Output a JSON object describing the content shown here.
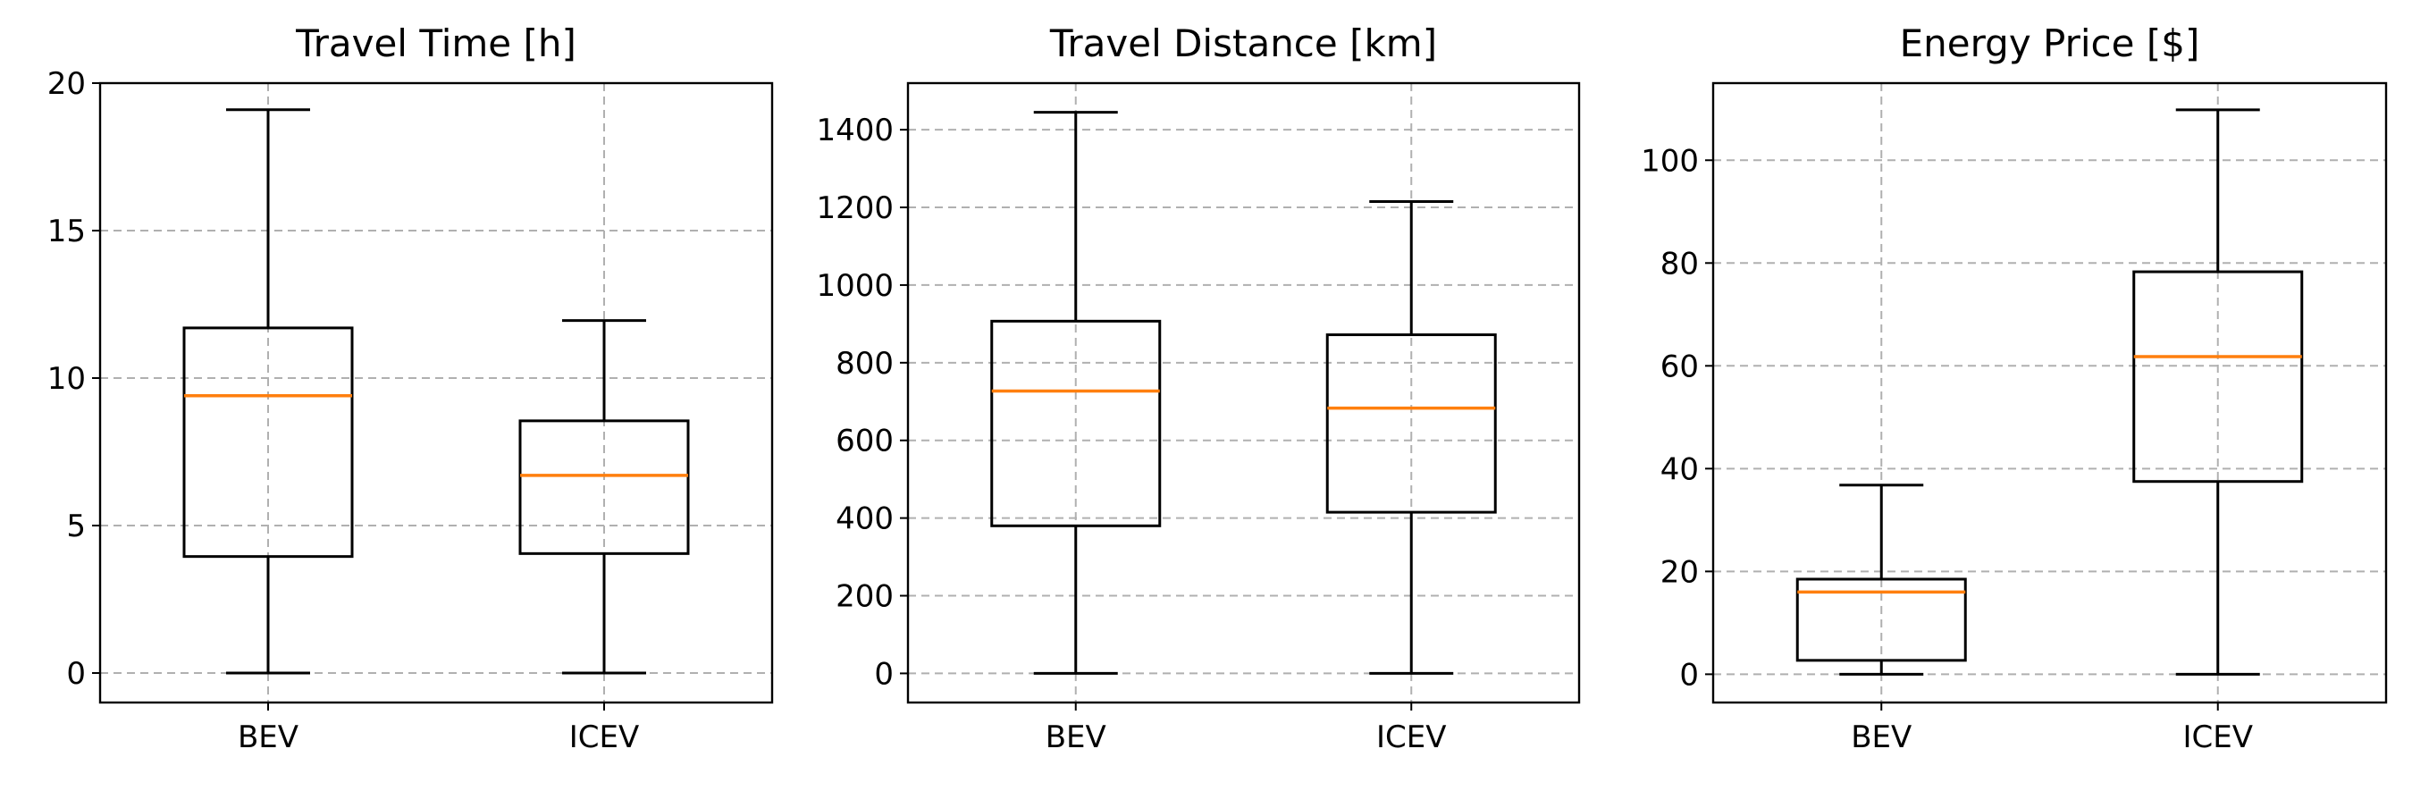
{
  "colors": {
    "median": "#ff7f0e",
    "box": "#000000",
    "grid": "#b0b0b0"
  },
  "chart_data": [
    {
      "type": "box",
      "title": "Travel Time [h]",
      "categories": [
        "BEV",
        "ICEV"
      ],
      "ylim": [
        -1,
        20
      ],
      "yticks": [
        0,
        5,
        10,
        15,
        20
      ],
      "grid": true,
      "boxes": [
        {
          "category": "BEV",
          "whislo": 0,
          "q1": 3.95,
          "med": 9.4,
          "q3": 11.7,
          "whishi": 19.1
        },
        {
          "category": "ICEV",
          "whislo": 0,
          "q1": 4.05,
          "med": 6.7,
          "q3": 8.55,
          "whishi": 11.95
        }
      ]
    },
    {
      "type": "box",
      "title": "Travel Distance [km]",
      "categories": [
        "BEV",
        "ICEV"
      ],
      "ylim": [
        -75,
        1520
      ],
      "yticks": [
        0,
        200,
        400,
        600,
        800,
        1000,
        1200,
        1400
      ],
      "grid": true,
      "boxes": [
        {
          "category": "BEV",
          "whislo": 0,
          "q1": 380,
          "med": 727,
          "q3": 907,
          "whishi": 1445
        },
        {
          "category": "ICEV",
          "whislo": 0,
          "q1": 415,
          "med": 683,
          "q3": 872,
          "whishi": 1215
        }
      ]
    },
    {
      "type": "box",
      "title": "Energy Price [$]",
      "categories": [
        "BEV",
        "ICEV"
      ],
      "ylim": [
        -5.5,
        115
      ],
      "yticks": [
        0,
        20,
        40,
        60,
        80,
        100
      ],
      "grid": true,
      "boxes": [
        {
          "category": "BEV",
          "whislo": 0,
          "q1": 2.7,
          "med": 16,
          "q3": 18.5,
          "whishi": 36.8
        },
        {
          "category": "ICEV",
          "whislo": 0,
          "q1": 37.5,
          "med": 61.8,
          "q3": 78.3,
          "whishi": 109.8
        }
      ]
    }
  ]
}
